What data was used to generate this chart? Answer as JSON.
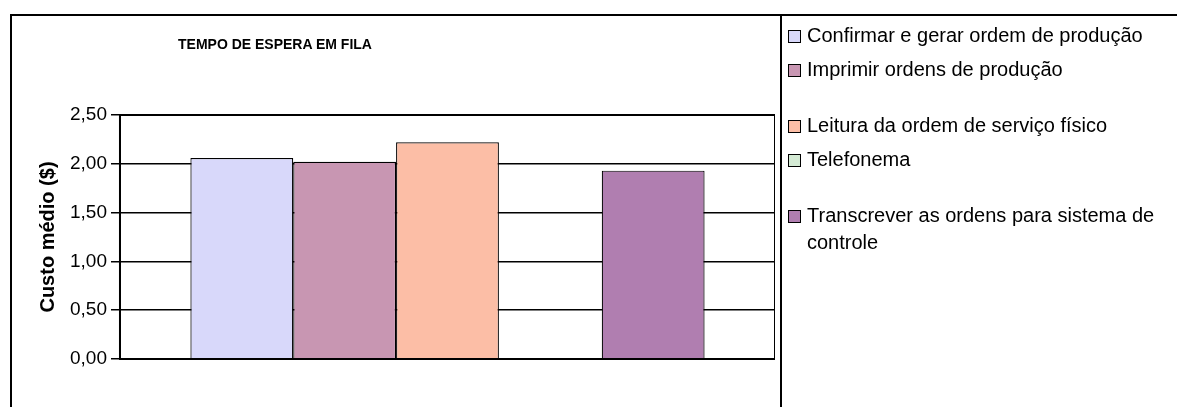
{
  "chart_data": {
    "type": "bar",
    "title": "TEMPO DE ESPERA EM FILA",
    "ylabel": "Custo médio ($)",
    "categories": [
      null
    ],
    "series": [
      {
        "name": "Confirmar e gerar ordem de produção",
        "color": "#d8d8fa",
        "values": [
          2.06
        ]
      },
      {
        "name": "Imprimir ordens de produção",
        "color": "#c896b2",
        "values": [
          2.02
        ]
      },
      {
        "name": "Leitura da ordem de serviço físico",
        "color": "#fcbea6",
        "values": [
          2.22
        ]
      },
      {
        "name": "Telefonema",
        "color": "#d4ead4",
        "values": [
          null
        ]
      },
      {
        "name": "Transcrever as ordens para sistema de controle",
        "color": "#b07eb0",
        "values": [
          1.93
        ]
      }
    ],
    "ylim": [
      0,
      2.5
    ],
    "yticks": [
      {
        "value": 0,
        "label": "0,00"
      },
      {
        "value": 0.5,
        "label": "0,50"
      },
      {
        "value": 1,
        "label": "1,00"
      },
      {
        "value": 1.5,
        "label": "1,50"
      },
      {
        "value": 2,
        "label": "2,00"
      },
      {
        "value": 2.5,
        "label": "2,50"
      }
    ],
    "grid": "y",
    "legend": "right"
  }
}
